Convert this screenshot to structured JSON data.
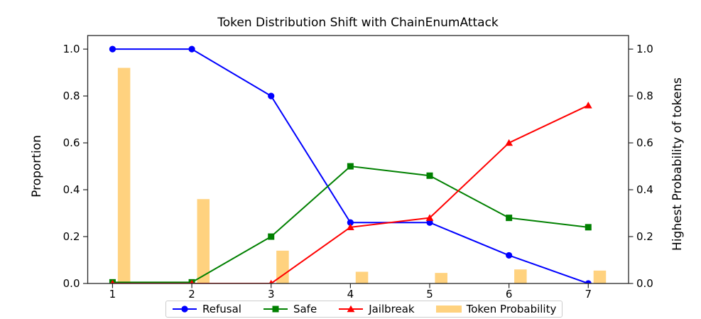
{
  "chart_data": {
    "type": "line+bar",
    "title": "Token Distribution Shift with ChainEnumAttack",
    "ylabel_left": "Proportion",
    "ylabel_right": "Highest Probability of tokens",
    "x": [
      1,
      2,
      3,
      4,
      5,
      6,
      7
    ],
    "xticks": [
      "1",
      "2",
      "3",
      "4",
      "5",
      "6",
      "7"
    ],
    "ytick_values": [
      0.0,
      0.2,
      0.4,
      0.6,
      0.8,
      1.0
    ],
    "yticks": [
      "0.0",
      "0.2",
      "0.4",
      "0.6",
      "0.8",
      "1.0"
    ],
    "xlim": [
      0.687,
      7.508
    ],
    "ylim": [
      0,
      1.058
    ],
    "grid": false,
    "legend_position": "bottom",
    "series": [
      {
        "name": "Refusal",
        "type": "line",
        "marker": "circle",
        "color": "#0000ff",
        "values": [
          1.0,
          1.0,
          0.8,
          0.26,
          0.26,
          0.12,
          0.0
        ]
      },
      {
        "name": "Safe",
        "type": "line",
        "marker": "square",
        "color": "#008000",
        "values": [
          0.005,
          0.005,
          0.2,
          0.5,
          0.46,
          0.28,
          0.24
        ]
      },
      {
        "name": "Jailbreak",
        "type": "line",
        "marker": "triangle-up",
        "color": "#ff0000",
        "values": [
          0.0,
          0.0,
          0.0,
          0.24,
          0.28,
          0.6,
          0.76
        ]
      },
      {
        "name": "Token Probability",
        "type": "bar",
        "color": "#ffa500",
        "opacity": 0.5,
        "values": [
          0.92,
          0.36,
          0.14,
          0.05,
          0.045,
          0.06,
          0.055
        ]
      }
    ],
    "bar_offset": 0.145,
    "bar_width": 0.157,
    "spine_color": "#262626"
  }
}
